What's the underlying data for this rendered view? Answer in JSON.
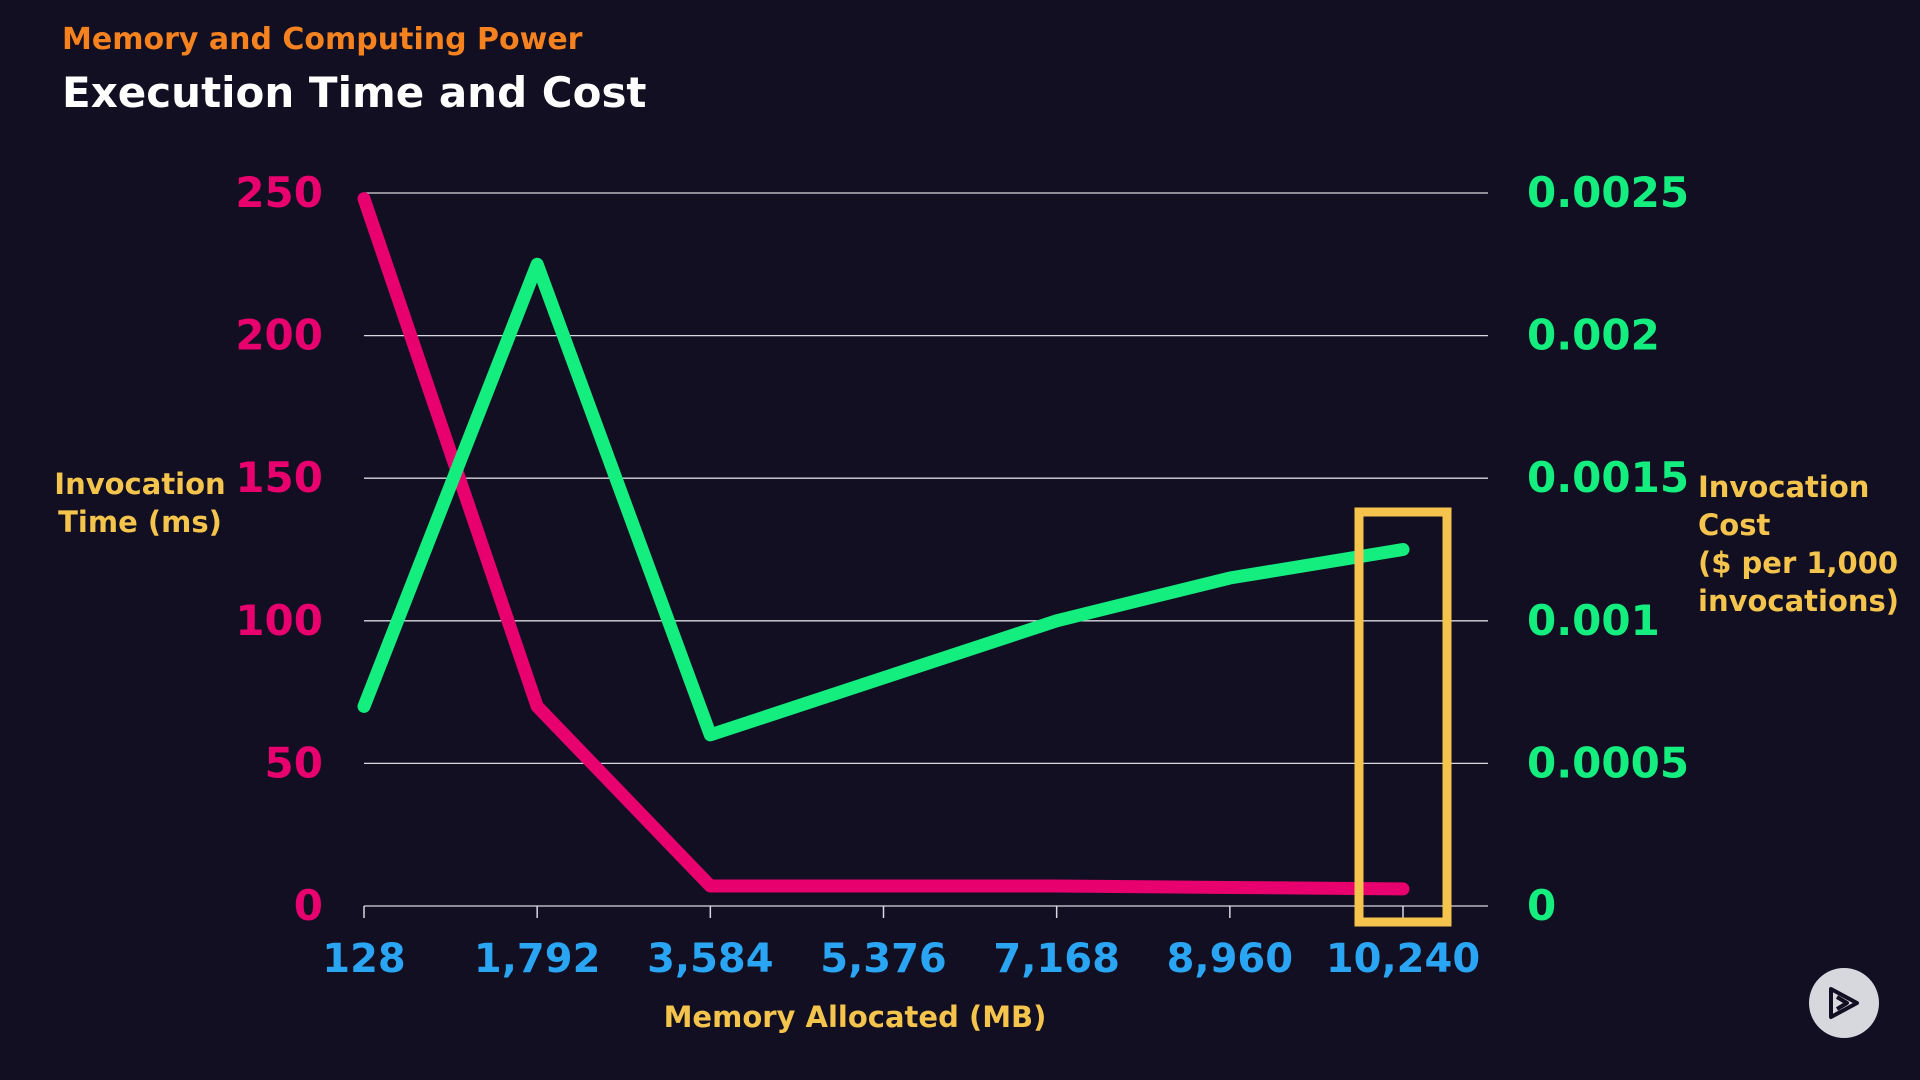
{
  "header": {
    "eyebrow": "Memory and Computing Power",
    "title": "Execution Time and Cost"
  },
  "colors": {
    "background": "#120f22",
    "time_series": "#e8006f",
    "cost_series": "#14ee7e",
    "x_ticks": "#2aa5f4",
    "axis_titles": "#f5c44c",
    "eyebrow": "#f5821f",
    "highlight": "#f5c44c",
    "gridline": "#d8d8e0"
  },
  "icons": {
    "play": "play-icon"
  },
  "chart_data": {
    "type": "line",
    "x_axis": {
      "label": "Memory Allocated (MB)",
      "ticks": [
        "128",
        "1,792",
        "3,584",
        "5,376",
        "7,168",
        "8,960",
        "10,240"
      ]
    },
    "y_left": {
      "label": [
        "Invocation",
        "Time (ms)"
      ],
      "ticks": [
        "0",
        "50",
        "100",
        "150",
        "200",
        "250"
      ],
      "range": [
        0,
        250
      ]
    },
    "y_right": {
      "label": [
        "Invocation",
        "Cost",
        "($ per 1,000",
        "invocations)"
      ],
      "ticks": [
        "0",
        "0.0005",
        "0.001",
        "0.0015",
        "0.002",
        "0.0025"
      ],
      "range": [
        0,
        0.0025
      ]
    },
    "series": [
      {
        "axis": "left",
        "values": [
          248,
          70,
          7,
          7,
          7,
          6.5,
          6
        ]
      },
      {
        "axis": "right",
        "values": [
          0.0007,
          0.00225,
          0.0006,
          0.0008,
          0.001,
          0.00115,
          0.00125
        ]
      }
    ],
    "highlight_category": "10,240",
    "grid": true
  }
}
